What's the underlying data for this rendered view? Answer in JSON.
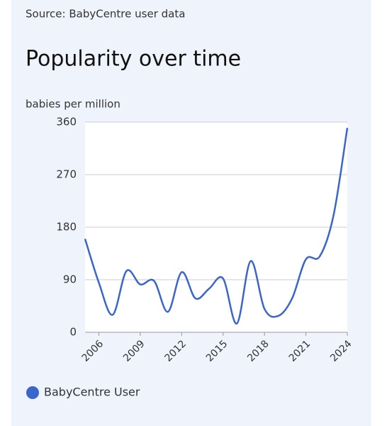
{
  "source": "Source: BabyCentre user data",
  "chart_data": {
    "type": "line",
    "title": "Popularity over time",
    "y_label": "babies per million",
    "x": [
      2005,
      2006,
      2007,
      2008,
      2009,
      2010,
      2011,
      2012,
      2013,
      2014,
      2015,
      2016,
      2017,
      2018,
      2019,
      2020,
      2021,
      2022,
      2023,
      2024
    ],
    "xlim": [
      2005,
      2024
    ],
    "xticks": [
      2006,
      2009,
      2012,
      2015,
      2018,
      2021,
      2024
    ],
    "ylim": [
      0,
      360
    ],
    "yticks": [
      0,
      90,
      180,
      270,
      360
    ],
    "grid": true,
    "legend": "bottom-left",
    "series": [
      {
        "name": "BabyCentre User",
        "color": "#3a66cc",
        "values": [
          160,
          85,
          30,
          105,
          82,
          88,
          35,
          103,
          58,
          75,
          92,
          15,
          122,
          40,
          28,
          58,
          125,
          130,
          200,
          350
        ]
      }
    ]
  }
}
